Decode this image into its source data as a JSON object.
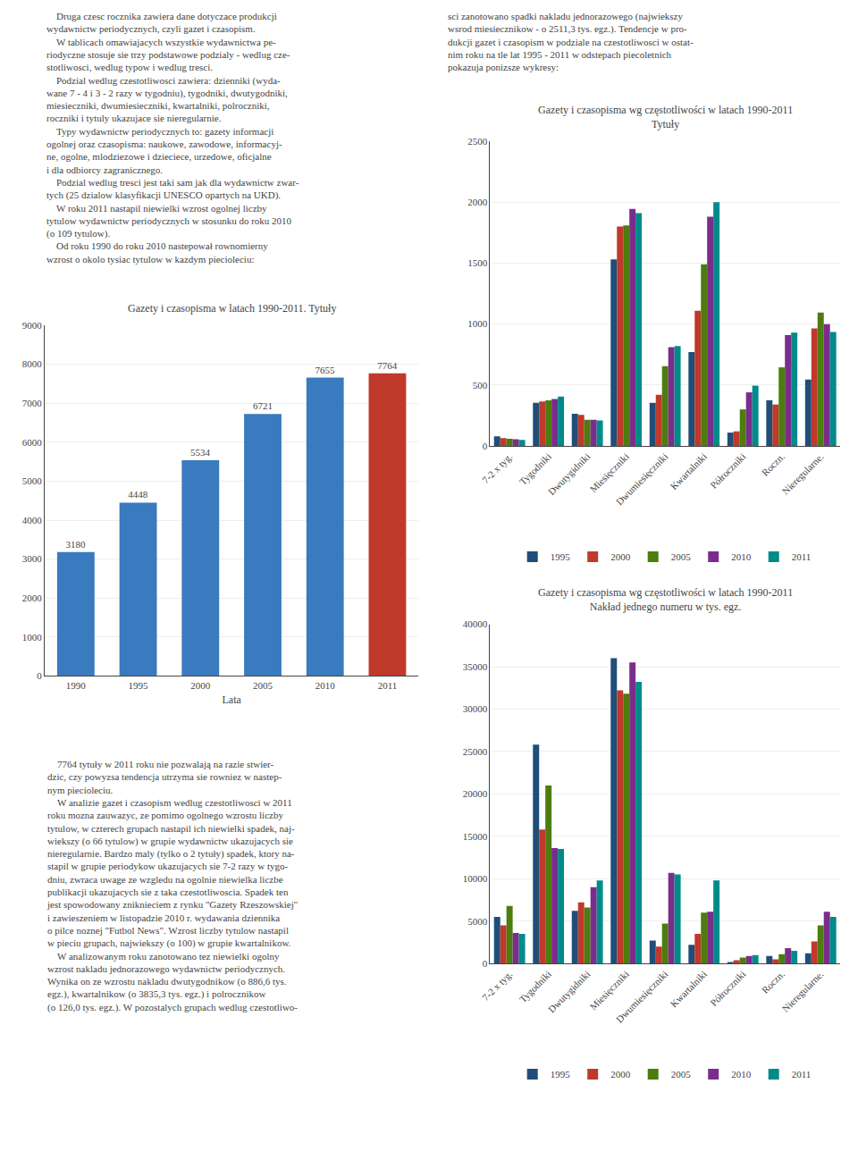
{
  "chart_data": [
    {
      "type": "bar",
      "title": "Gazety i czasopisma w latach 1990-2011. Tytuły",
      "xlabel": "Lata",
      "categories": [
        "1990",
        "1995",
        "2000",
        "2005",
        "2010",
        "2011"
      ],
      "values": [
        3180,
        4448,
        5534,
        6721,
        7655,
        7764
      ],
      "colors": [
        "#3a7abf",
        "#3a7abf",
        "#3a7abf",
        "#3a7abf",
        "#3a7abf",
        "#c0392b"
      ],
      "data_labels": true,
      "ylim": [
        0,
        9000
      ],
      "yticks": [
        0,
        1000,
        2000,
        3000,
        4000,
        5000,
        6000,
        7000,
        8000,
        9000
      ],
      "grid": true,
      "annotations": [
        "    Druga czesc rocznika zawiera dane dotyczace produkcji\nwydawnictw periodycznych, czyli gazet i czasopism.\n    W tablicach omawiajacych wszystkie wydawnictwa pe-\nriodyczne stosuje sie trzy podstawowe podzialy - wedlug cze-\nstotliwosci, wedlug typow i wedlug tresci.\n    Podzial wedlug czestotliwosci zawiera: dzienniki (wyda-\nwane 7 - 4 i 3 - 2 razy w tygodniu), tygodniki, dwutygodniki,\nmiesieczniki, dwumiesieczniki, kwartalniki, polroczniki,\nroczniki i tytuly ukazujace sie nieregularnie.\n    Typy wydawnictw periodycznych to: gazety informacji\nogolnej oraz czasopisma: naukowe, zawodowe, informacyj-\nne, ogolne, mlodziezowe i dzieciece, urzedowe, oficjalne\ni dla odbiorcy zagranicznego.\n    Podzial wedlug tresci jest taki sam jak dla wydawnictw zwar-\ntych (25 dzialow klasyfikacji UNESCO opartych na UKD).\n    W roku 2011 nastapil niewielki wzrost ogolnej liczby\ntytulow wydawnictw periodycznych w stosunku do roku 2010\n(o 109 tytulow).\n    Od roku 1990 do roku 2010 nastepował rownomierny\nwzrost o okolo tysiac tytulow w kazdym piecioleciu:",
        "    7764 tytuły w 2011 roku nie pozwalają na razie stwier-\ndzic, czy powyzsa tendencja utrzyma sie rowniez w nastep-\nnym piecioleciu.\n    W analizie gazet i czasopism wedlug czestotliwosci w 2011\nroku mozna zauwazyc, ze pomimo ogolnego wzrostu liczby\ntytulow, w czterech grupach nastapil ich niewielki spadek, naj-\nwiekszy (o 66 tytulow) w grupie wydawnictw ukazujacych sie\nnieregularnie. Bardzo maly (tylko o 2 tytuły) spadek, ktory na-\nstapil w grupie periodykow ukazujacych sie 7-2 razy w tygo-\ndniu, zwraca uwage ze wzgledu na ogolnie niewielka liczbe\npublikacji ukazujacych sie z taka czestotliwoscia. Spadek ten\njest spowodowany zniknieciem z rynku \"Gazety Rzeszowskiej\"\ni zawieszeniem w listopadzie 2010 r. wydawania dziennika\no pilce noznej \"Futbol News\". Wzrost liczby tytulow nastapil\nw pieciu grupach, najwiekszy (o 100) w grupie kwartalnikow.\n    W analizowanym roku zanotowano tez niewielki ogolny\nwzrost nakladu jednorazowego wydawnictw periodycznych.\nWynika on ze wzrostu nakladu dwutygodnikow (o 886,6 tys.\negz.), kwartalnikow (o 3835,3 tys. egz.) i polrocznikow\n(o 126,0 tys. egz.). W pozostalych grupach wedlug czestotliwo-"
      ]
    },
    {
      "type": "bar",
      "title": "Gazety i czasopisma wg częstotliwości w latach 1990-2011",
      "subtitle": "Tytuły",
      "categories": [
        "7-2 x tyg.",
        "Tygodniki",
        "Dwutygidniki",
        "Miesięczniki",
        "Dwumiesięczniki",
        "Kwartalniki",
        "Półroczniki",
        "Roczn.",
        "Nieregularne."
      ],
      "series": [
        {
          "name": "1995",
          "color": "#1f4e79",
          "values": [
            80,
            355,
            265,
            1530,
            355,
            770,
            110,
            375,
            545
          ]
        },
        {
          "name": "2000",
          "color": "#c0392b",
          "values": [
            65,
            365,
            255,
            1800,
            420,
            1110,
            120,
            340,
            965
          ]
        },
        {
          "name": "2005",
          "color": "#4d7c0f",
          "values": [
            60,
            375,
            215,
            1810,
            655,
            1490,
            300,
            645,
            1095
          ]
        },
        {
          "name": "2010",
          "color": "#7b2d8b",
          "values": [
            55,
            385,
            215,
            1945,
            810,
            1880,
            440,
            910,
            1000
          ]
        },
        {
          "name": "2011",
          "color": "#008b8b",
          "values": [
            50,
            405,
            210,
            1910,
            820,
            2000,
            495,
            930,
            935
          ]
        }
      ],
      "ylim": [
        0,
        2500
      ],
      "yticks": [
        0,
        500,
        1000,
        1500,
        2000,
        2500
      ],
      "grid": true,
      "legend": "bottom",
      "annotations": [
        "sci zanotowano spadki nakladu jednorazowego (najwiekszy\nwsrod miesiecznikow - o 2511,3 tys. egz.). Tendencje w pro-\ndukcji gazet i czasopism w podziale na czestotliwosci w ostat-\nnim roku na tle lat 1995 - 2011 w odstepach piecoletnich\npokazuja ponizsze wykresy:"
      ]
    },
    {
      "type": "bar",
      "title": "Gazety i czasopisma wg częstotliwości w latach 1990-2011",
      "subtitle": "Nakład jednego numeru w tys. egz.",
      "categories": [
        "7-2 x tyg.",
        "Tygodniki",
        "Dwutygidniki",
        "Miesięczniki",
        "Dwumiesięczniki",
        "Kwartalniki",
        "Półroczniki",
        "Roczn.",
        "Nieregularne."
      ],
      "series": [
        {
          "name": "1995",
          "color": "#1f4e79",
          "values": [
            5500,
            25800,
            6200,
            36000,
            2700,
            2200,
            100,
            900,
            1200
          ]
        },
        {
          "name": "2000",
          "color": "#c0392b",
          "values": [
            4500,
            15800,
            7200,
            32200,
            2000,
            3500,
            400,
            500,
            2600
          ]
        },
        {
          "name": "2005",
          "color": "#4d7c0f",
          "values": [
            6800,
            21000,
            6600,
            31800,
            4700,
            6000,
            700,
            1100,
            4500
          ]
        },
        {
          "name": "2010",
          "color": "#7b2d8b",
          "values": [
            3600,
            13600,
            9000,
            35500,
            10700,
            6100,
            900,
            1800,
            6100
          ]
        },
        {
          "name": "2011",
          "color": "#008b8b",
          "values": [
            3500,
            13500,
            9800,
            33200,
            10500,
            9800,
            1000,
            1500,
            5500
          ]
        }
      ],
      "ylim": [
        0,
        40000
      ],
      "yticks": [
        0,
        5000,
        10000,
        15000,
        20000,
        25000,
        30000,
        35000,
        40000
      ],
      "grid": true,
      "legend": "bottom"
    }
  ]
}
